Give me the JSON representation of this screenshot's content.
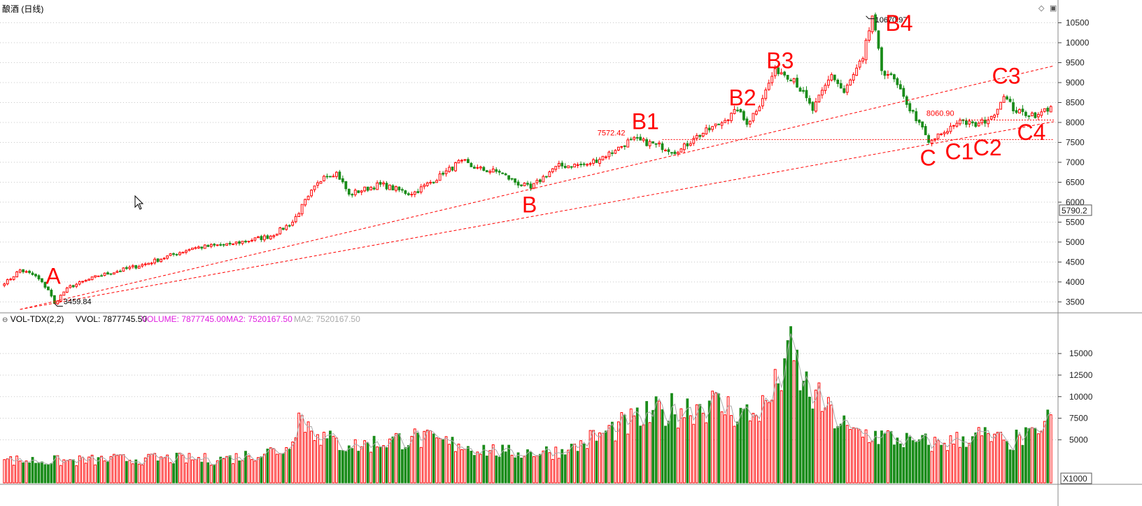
{
  "title": "酿酒 (日线)",
  "vol_header": {
    "name": "VOL-TDX(2,2)",
    "vvol": "VVOL: 7877745.50",
    "volume": "VOLUME: 7877745.00",
    "ma2": "MA2: 7520167.50",
    "ma2_grey": "MA2: 7520167.50"
  },
  "colors": {
    "up": "#ff0000",
    "down": "#1a8c1a",
    "annotation": "#ff0000",
    "volume_label": "#e020e0",
    "grid": "#c8c8c8"
  },
  "icons": [
    "diamond-icon",
    "window-icon"
  ],
  "price_axis": {
    "ticks": [
      3500,
      4000,
      4500,
      5000,
      5500,
      6000,
      6500,
      7000,
      7500,
      8000,
      8500,
      9000,
      9500,
      10000,
      10500
    ],
    "range": [
      3260,
      10720
    ],
    "marker": "5790.2"
  },
  "volume_axis": {
    "ticks": [
      5000,
      7500,
      10000,
      12500,
      15000
    ],
    "range": [
      0,
      18500
    ],
    "unit": "X1000"
  },
  "price_labels": [
    {
      "text": "10670.97",
      "bar": 275,
      "value": 10670.97
    },
    {
      "text": "3459.84",
      "bar": 16,
      "value": 3459.84
    },
    {
      "text": "7572.42",
      "bar": 200,
      "value": 7572.42
    },
    {
      "text": "8060.90",
      "bar": 305,
      "value": 8060.9
    }
  ],
  "annotations": [
    {
      "text": "A",
      "bar": 15,
      "value": 3950
    },
    {
      "text": "B",
      "bar": 167,
      "value": 5740
    },
    {
      "text": "B1",
      "bar": 202,
      "value": 7830
    },
    {
      "text": "B2",
      "bar": 233,
      "value": 8430
    },
    {
      "text": "B3",
      "bar": 245,
      "value": 9360
    },
    {
      "text": "B4",
      "bar": 283,
      "value": 10300
    },
    {
      "text": "C",
      "bar": 294,
      "value": 6920
    },
    {
      "text": "C1",
      "bar": 302,
      "value": 7080
    },
    {
      "text": "C2",
      "bar": 311,
      "value": 7170
    },
    {
      "text": "C3",
      "bar": 317,
      "value": 8970
    },
    {
      "text": "C4",
      "bar": 325,
      "value": 7560
    }
  ],
  "trendlines": [
    {
      "from": [
        5,
        3310
      ],
      "to": [
        335,
        9420
      ],
      "dash": "4,3"
    },
    {
      "from": [
        5,
        3310
      ],
      "to": [
        335,
        8020
      ],
      "dash": "4,3"
    },
    {
      "from": [
        210,
        7572.42
      ],
      "to": [
        335,
        7572.42
      ],
      "dash": "2,2"
    },
    {
      "from": [
        305,
        8060.9
      ],
      "to": [
        335,
        8060.9
      ],
      "dash": "2,2"
    }
  ],
  "chart_data": {
    "type": "candlestick",
    "bars": 335,
    "price_anchors": [
      [
        0,
        3950
      ],
      [
        5,
        4300
      ],
      [
        10,
        4150
      ],
      [
        14,
        3800
      ],
      [
        16,
        3459.84
      ],
      [
        20,
        3850
      ],
      [
        30,
        4150
      ],
      [
        45,
        4450
      ],
      [
        60,
        4850
      ],
      [
        72,
        4950
      ],
      [
        85,
        5150
      ],
      [
        92,
        5500
      ],
      [
        97,
        6150
      ],
      [
        102,
        6650
      ],
      [
        106,
        6750
      ],
      [
        110,
        6200
      ],
      [
        120,
        6450
      ],
      [
        130,
        6200
      ],
      [
        140,
        6700
      ],
      [
        146,
        7050
      ],
      [
        150,
        6850
      ],
      [
        158,
        6750
      ],
      [
        163,
        6500
      ],
      [
        168,
        6350
      ],
      [
        176,
        6900
      ],
      [
        186,
        6950
      ],
      [
        195,
        7300
      ],
      [
        200,
        7572.42
      ],
      [
        208,
        7450
      ],
      [
        215,
        7250
      ],
      [
        220,
        7600
      ],
      [
        230,
        8050
      ],
      [
        234,
        8300
      ],
      [
        237,
        7950
      ],
      [
        242,
        8600
      ],
      [
        246,
        9350
      ],
      [
        252,
        9100
      ],
      [
        258,
        8300
      ],
      [
        264,
        9200
      ],
      [
        268,
        8750
      ],
      [
        274,
        9600
      ],
      [
        277,
        10670.97
      ],
      [
        280,
        9300
      ],
      [
        283,
        9200
      ],
      [
        288,
        8450
      ],
      [
        292,
        8000
      ],
      [
        295,
        7500
      ],
      [
        300,
        7750
      ],
      [
        305,
        8060.9
      ],
      [
        310,
        7900
      ],
      [
        315,
        8150
      ],
      [
        319,
        8650
      ],
      [
        323,
        8250
      ],
      [
        330,
        8200
      ],
      [
        334,
        8400
      ]
    ],
    "volume_anchors": [
      [
        0,
        2700
      ],
      [
        20,
        2600
      ],
      [
        45,
        2900
      ],
      [
        70,
        2800
      ],
      [
        90,
        4100
      ],
      [
        94,
        8100
      ],
      [
        100,
        5600
      ],
      [
        110,
        4300
      ],
      [
        130,
        5400
      ],
      [
        145,
        4500
      ],
      [
        160,
        3600
      ],
      [
        180,
        3800
      ],
      [
        190,
        5800
      ],
      [
        210,
        8500
      ],
      [
        225,
        9500
      ],
      [
        240,
        7800
      ],
      [
        247,
        11500
      ],
      [
        250,
        16500
      ],
      [
        255,
        11800
      ],
      [
        262,
        8700
      ],
      [
        270,
        6200
      ],
      [
        290,
        4900
      ],
      [
        300,
        4600
      ],
      [
        310,
        5800
      ],
      [
        320,
        4800
      ],
      [
        330,
        5700
      ],
      [
        334,
        7900
      ]
    ],
    "price_extremes": {
      "high": 10670.97,
      "low": 3459.84
    }
  }
}
